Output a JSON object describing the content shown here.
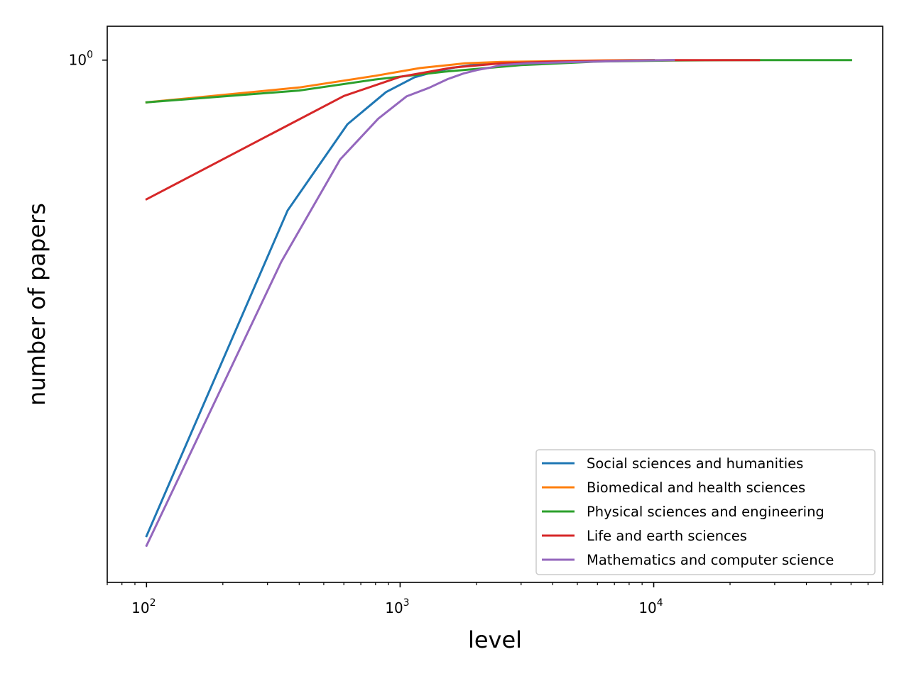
{
  "chart_data": {
    "type": "line",
    "title": "",
    "xlabel": "level",
    "ylabel": "number of papers",
    "xscale": "log",
    "yscale": "log",
    "xlim": [
      70,
      80000
    ],
    "ylim": [
      0.23,
      1.1
    ],
    "xticks": [
      {
        "value": 100,
        "base": "10",
        "exp": "2"
      },
      {
        "value": 1000,
        "base": "10",
        "exp": "3"
      },
      {
        "value": 10000,
        "base": "10",
        "exp": "4"
      }
    ],
    "yticks": [
      {
        "value": 1,
        "base": "10",
        "exp": "0"
      }
    ],
    "grid": false,
    "legend_position": "lower-right",
    "series": [
      {
        "name": "Social sciences and humanities",
        "color": "#1f77b4",
        "x": [
          100,
          360,
          620,
          880,
          1140,
          1400,
          1660,
          2000,
          2500,
          3200,
          4500,
          6000,
          8000,
          10000
        ],
        "y": [
          0.262,
          0.655,
          0.835,
          0.914,
          0.953,
          0.97,
          0.98,
          0.988,
          0.992,
          0.995,
          0.997,
          0.998,
          0.999,
          1.0
        ]
      },
      {
        "name": "Biomedical and health sciences",
        "color": "#ff7f0e",
        "x": [
          100,
          400,
          800,
          1200,
          1800,
          2500,
          4000,
          6000,
          8000,
          10000
        ],
        "y": [
          0.888,
          0.926,
          0.957,
          0.978,
          0.991,
          0.995,
          0.997,
          0.999,
          1.0,
          1.0
        ]
      },
      {
        "name": "Physical sciences and engineering",
        "color": "#2ca02c",
        "x": [
          100,
          400,
          800,
          1500,
          3000,
          6000,
          12000,
          25000,
          60000
        ],
        "y": [
          0.888,
          0.918,
          0.947,
          0.968,
          0.986,
          0.996,
          0.999,
          1.0,
          1.0
        ]
      },
      {
        "name": "Life and earth sciences",
        "color": "#d62728",
        "x": [
          100,
          600,
          1000,
          1600,
          2500,
          4000,
          8000,
          12000,
          26000
        ],
        "y": [
          0.676,
          0.904,
          0.954,
          0.979,
          0.991,
          0.996,
          0.999,
          1.0,
          1.0
        ]
      },
      {
        "name": "Mathematics and computer science",
        "color": "#9467bd",
        "x": [
          100,
          340,
          580,
          820,
          1060,
          1300,
          1540,
          1780,
          2020,
          2260,
          2500,
          3200,
          4500,
          6000,
          8000,
          12000
        ],
        "y": [
          0.255,
          0.567,
          0.756,
          0.848,
          0.903,
          0.925,
          0.948,
          0.963,
          0.973,
          0.979,
          0.986,
          0.991,
          0.994,
          0.996,
          0.998,
          1.0
        ]
      }
    ]
  }
}
